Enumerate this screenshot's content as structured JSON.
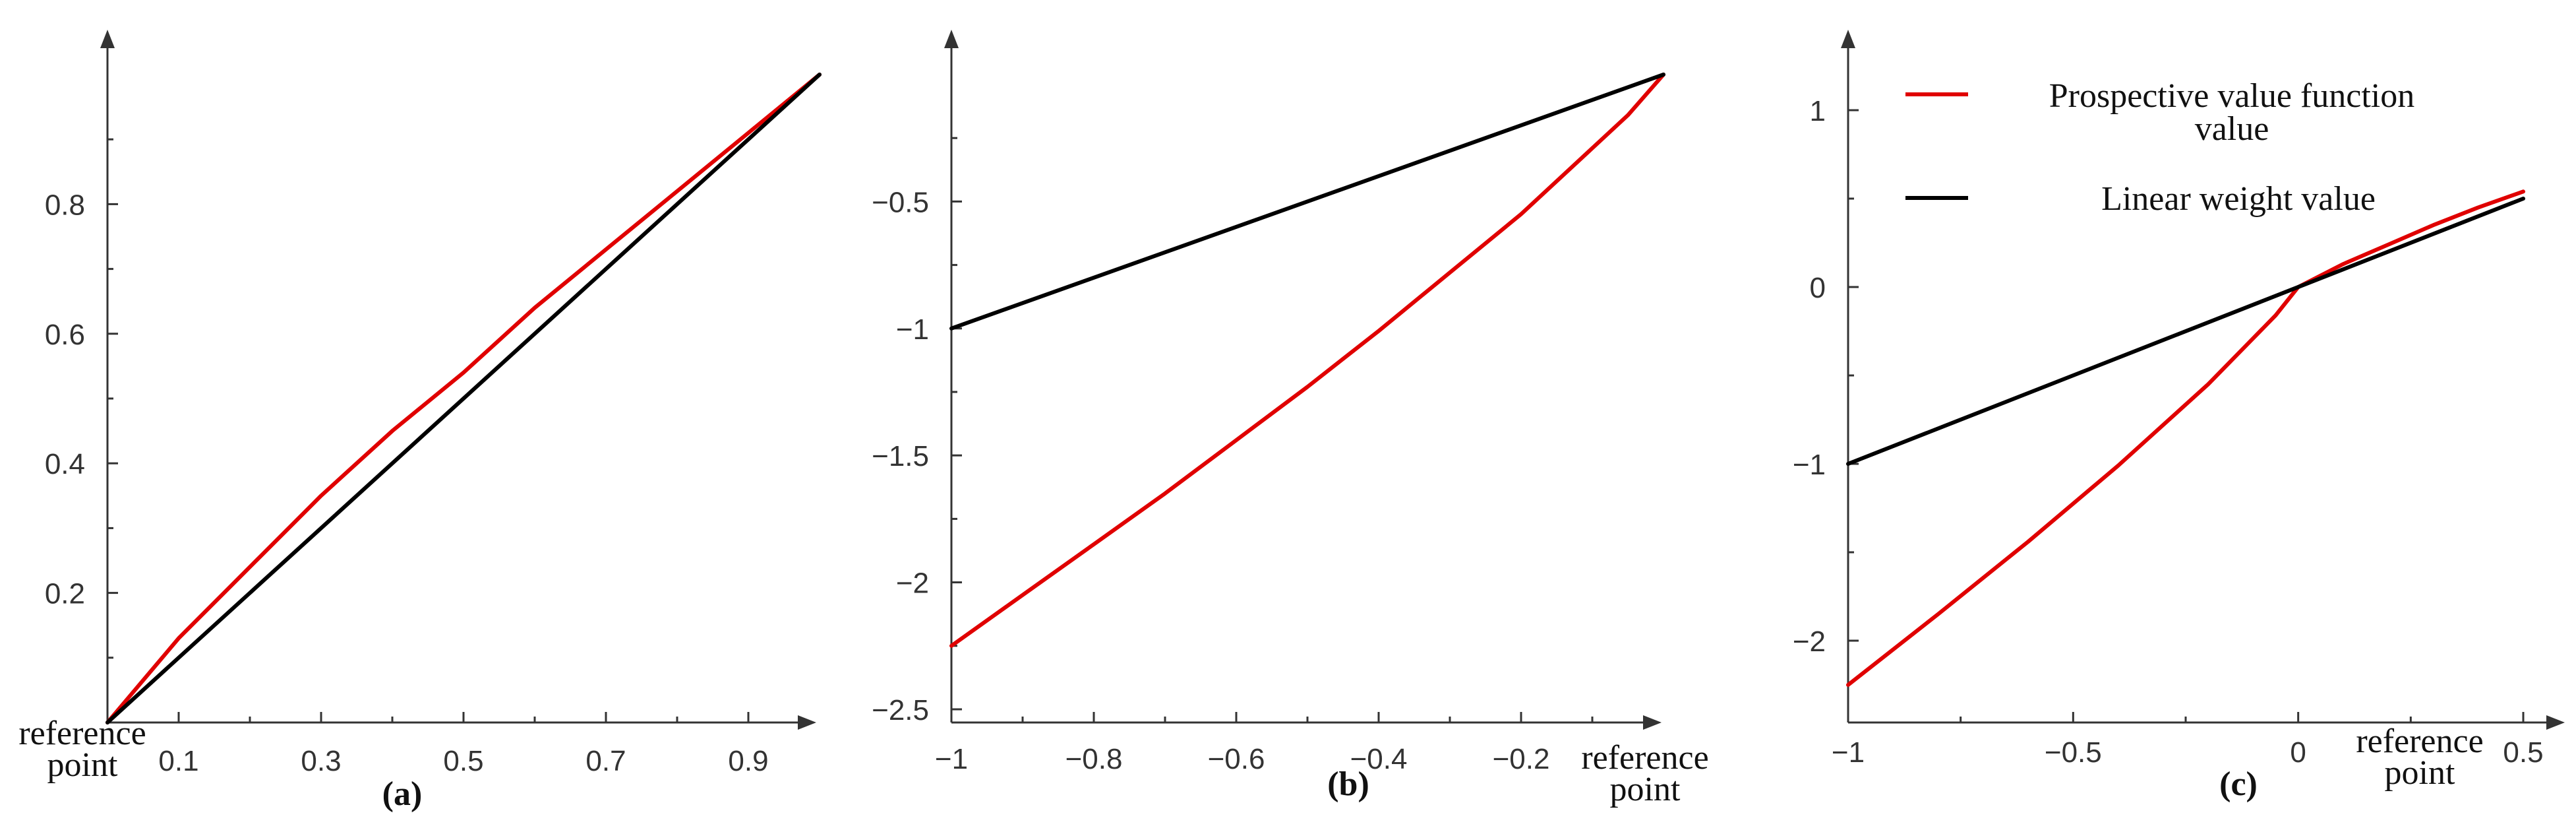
{
  "chart_data": [
    {
      "type": "line",
      "panel_label": "(a)",
      "xlabel": "reference\npoint",
      "xlim": [
        0,
        1
      ],
      "ylim": [
        0,
        1
      ],
      "x_ticks": [
        0.1,
        0.3,
        0.5,
        0.7,
        0.9
      ],
      "x_tick_labels": [
        "0.1",
        "0.3",
        "0.5",
        "0.7",
        "0.9"
      ],
      "y_ticks": [
        0.2,
        0.4,
        0.6,
        0.8
      ],
      "y_tick_labels": [
        "0.2",
        "0.4",
        "0.6",
        "0.8"
      ],
      "series": [
        {
          "color": "#e00000",
          "x": [
            0,
            0.1,
            0.2,
            0.3,
            0.4,
            0.5,
            0.6,
            0.7,
            0.8,
            0.9,
            1.0
          ],
          "y": [
            0,
            0.13,
            0.24,
            0.35,
            0.45,
            0.54,
            0.64,
            0.73,
            0.82,
            0.91,
            1.0
          ]
        },
        {
          "color": "#000000",
          "x": [
            0,
            1
          ],
          "y": [
            0,
            1
          ]
        }
      ]
    },
    {
      "type": "line",
      "panel_label": "(b)",
      "xlabel": "reference\npoint",
      "xlim": [
        -1,
        0
      ],
      "ylim": [
        -2.5,
        0
      ],
      "x_ticks": [
        -1,
        -0.8,
        -0.6,
        -0.4,
        -0.2
      ],
      "x_tick_labels": [
        "−1",
        "−0.8",
        "−0.6",
        "−0.4",
        "−0.2"
      ],
      "y_ticks": [
        -2.5,
        -2,
        -1.5,
        -1,
        -0.5
      ],
      "y_tick_labels": [
        "−2.5",
        "−2",
        "−1.5",
        "−1",
        "−0.5"
      ],
      "series": [
        {
          "color": "#e00000",
          "x": [
            -1,
            -0.9,
            -0.8,
            -0.7,
            -0.6,
            -0.5,
            -0.4,
            -0.3,
            -0.2,
            -0.1,
            -0.05,
            0
          ],
          "y": [
            -2.25,
            -2.05,
            -1.85,
            -1.65,
            -1.44,
            -1.23,
            -1.01,
            -0.78,
            -0.55,
            -0.29,
            -0.16,
            0
          ]
        },
        {
          "color": "#000000",
          "x": [
            -1,
            0
          ],
          "y": [
            -1,
            0
          ]
        }
      ]
    },
    {
      "type": "line",
      "panel_label": "(c)",
      "xlabel": "reference\npoint",
      "xlim": [
        -1,
        0.5
      ],
      "ylim": [
        -2.5,
        1.25
      ],
      "x_ticks": [
        -1,
        -0.5,
        0,
        0.5
      ],
      "x_tick_labels": [
        "−1",
        "−0.5",
        "0",
        "0.5"
      ],
      "y_ticks": [
        -2,
        -1,
        0,
        1
      ],
      "y_tick_labels": [
        "−2",
        "−1",
        "0",
        "1"
      ],
      "legend_position": "top-left",
      "series": [
        {
          "name": "Prospective value function\nvalue",
          "color": "#e00000",
          "x": [
            -1,
            -0.8,
            -0.6,
            -0.4,
            -0.2,
            -0.1,
            -0.05,
            0,
            0.1,
            0.2,
            0.3,
            0.4,
            0.5
          ],
          "y": [
            -2.25,
            -1.85,
            -1.44,
            -1.01,
            -0.55,
            -0.29,
            -0.16,
            0,
            0.13,
            0.24,
            0.35,
            0.45,
            0.54
          ]
        },
        {
          "name": "Linear weight value",
          "color": "#000000",
          "x": [
            -1,
            0.5
          ],
          "y": [
            -1,
            0.5
          ]
        }
      ]
    }
  ]
}
